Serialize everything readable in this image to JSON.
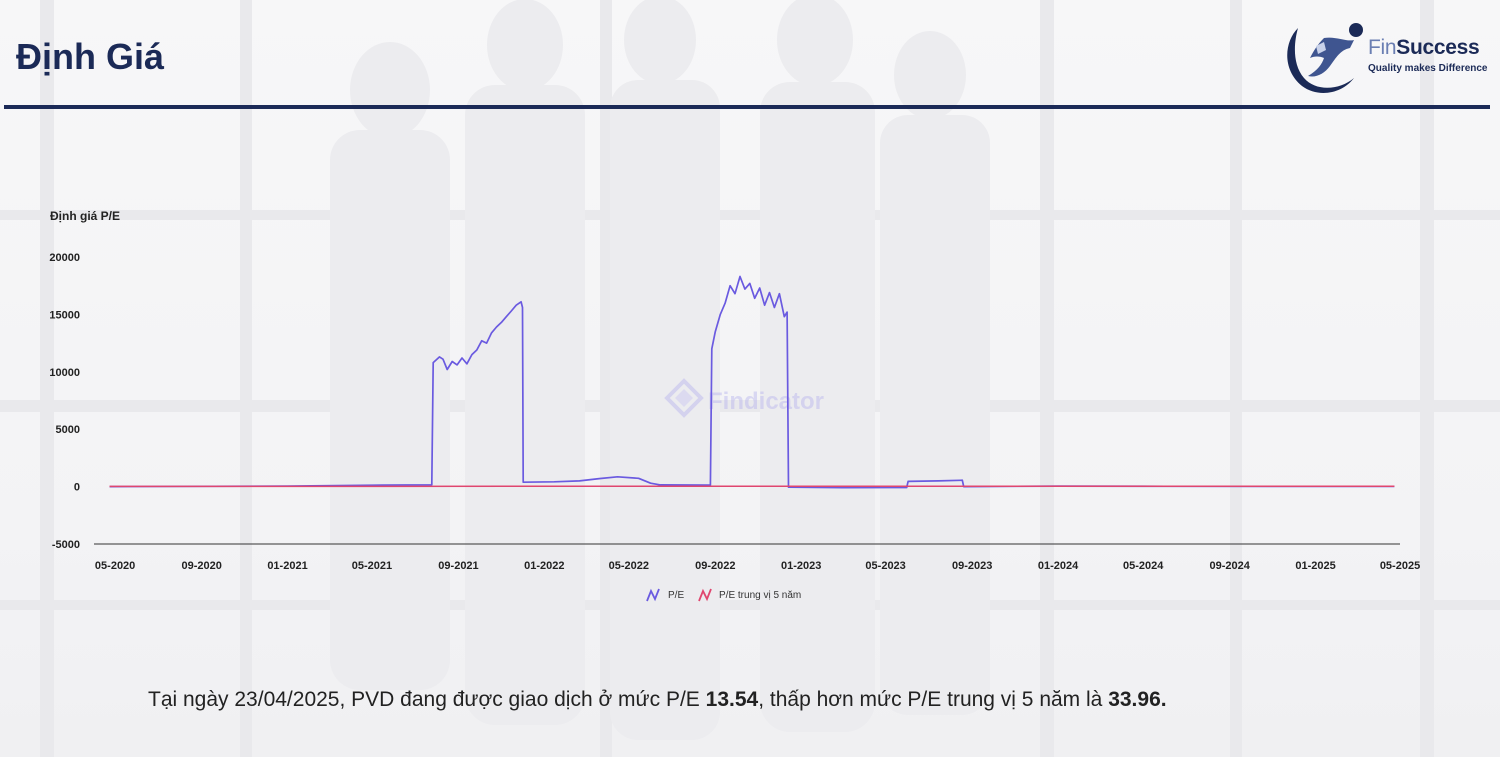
{
  "header": {
    "title": "Định Giá"
  },
  "logo": {
    "name_part1": "Fin",
    "name_part2": "Success",
    "tagline": "Quality makes Difference"
  },
  "watermark": {
    "text": "Findicator"
  },
  "chart_data": {
    "type": "line",
    "ylabel": "Định giá P/E",
    "ylim": [
      -5000,
      20000
    ],
    "yticks": [
      20000,
      15000,
      10000,
      5000,
      0,
      -5000
    ],
    "xlim": [
      "2020-04",
      "2025-05"
    ],
    "xticks": [
      "05-2020",
      "09-2020",
      "01-2021",
      "05-2021",
      "09-2021",
      "01-2022",
      "05-2022",
      "09-2022",
      "01-2023",
      "05-2023",
      "09-2023",
      "01-2024",
      "05-2024",
      "09-2024",
      "01-2025",
      "05-2025"
    ],
    "grid": false,
    "legend_position": "bottom",
    "series": [
      {
        "name": "P/E",
        "color": "#6a5ae0",
        "points": [
          [
            "2020-04-23",
            0
          ],
          [
            "2021-01-01",
            40
          ],
          [
            "2021-05-01",
            120
          ],
          [
            "2021-07-25",
            160
          ],
          [
            "2021-07-27",
            10800
          ],
          [
            "2021-08-05",
            11300
          ],
          [
            "2021-08-10",
            11100
          ],
          [
            "2021-08-16",
            10200
          ],
          [
            "2021-08-23",
            10900
          ],
          [
            "2021-08-30",
            10600
          ],
          [
            "2021-09-06",
            11200
          ],
          [
            "2021-09-13",
            10700
          ],
          [
            "2021-09-20",
            11500
          ],
          [
            "2021-09-27",
            11900
          ],
          [
            "2021-10-04",
            12700
          ],
          [
            "2021-10-11",
            12500
          ],
          [
            "2021-10-18",
            13400
          ],
          [
            "2021-10-25",
            13900
          ],
          [
            "2021-11-01",
            14300
          ],
          [
            "2021-11-08",
            14800
          ],
          [
            "2021-11-15",
            15300
          ],
          [
            "2021-11-22",
            15800
          ],
          [
            "2021-11-29",
            16100
          ],
          [
            "2021-12-01",
            15600
          ],
          [
            "2021-12-02",
            380
          ],
          [
            "2022-01-15",
            420
          ],
          [
            "2022-02-20",
            500
          ],
          [
            "2022-03-20",
            700
          ],
          [
            "2022-04-15",
            850
          ],
          [
            "2022-05-15",
            720
          ],
          [
            "2022-06-01",
            300
          ],
          [
            "2022-06-15",
            150
          ],
          [
            "2022-08-25",
            130
          ],
          [
            "2022-08-27",
            12000
          ],
          [
            "2022-09-01",
            13500
          ],
          [
            "2022-09-08",
            15000
          ],
          [
            "2022-09-15",
            16000
          ],
          [
            "2022-09-22",
            17500
          ],
          [
            "2022-09-29",
            16800
          ],
          [
            "2022-10-06",
            18300
          ],
          [
            "2022-10-13",
            17200
          ],
          [
            "2022-10-20",
            17700
          ],
          [
            "2022-10-27",
            16400
          ],
          [
            "2022-11-03",
            17300
          ],
          [
            "2022-11-10",
            15800
          ],
          [
            "2022-11-17",
            16900
          ],
          [
            "2022-11-24",
            15600
          ],
          [
            "2022-12-01",
            16800
          ],
          [
            "2022-12-08",
            14800
          ],
          [
            "2022-12-12",
            15200
          ],
          [
            "2022-12-14",
            -50
          ],
          [
            "2023-03-01",
            -100
          ],
          [
            "2023-05-31",
            -80
          ],
          [
            "2023-06-02",
            450
          ],
          [
            "2023-07-15",
            500
          ],
          [
            "2023-08-15",
            550
          ],
          [
            "2023-08-18",
            560
          ],
          [
            "2023-08-20",
            0
          ],
          [
            "2024-01-01",
            40
          ],
          [
            "2024-06-01",
            25
          ],
          [
            "2025-04-23",
            13.54
          ]
        ]
      },
      {
        "name": "P/E trung vị 5 năm",
        "color": "#e0466f",
        "points": [
          [
            "2020-04-23",
            20
          ],
          [
            "2022-01-01",
            30
          ],
          [
            "2025-04-23",
            33.96
          ]
        ]
      }
    ]
  },
  "footer": {
    "text1": "Tại ngày 23/04/2025, PVD đang được giao dịch ở mức P/E ",
    "pe_value": "13.54",
    "text2": ", thấp hơn mức P/E trung vị 5 năm là ",
    "median_value": "33.96."
  }
}
